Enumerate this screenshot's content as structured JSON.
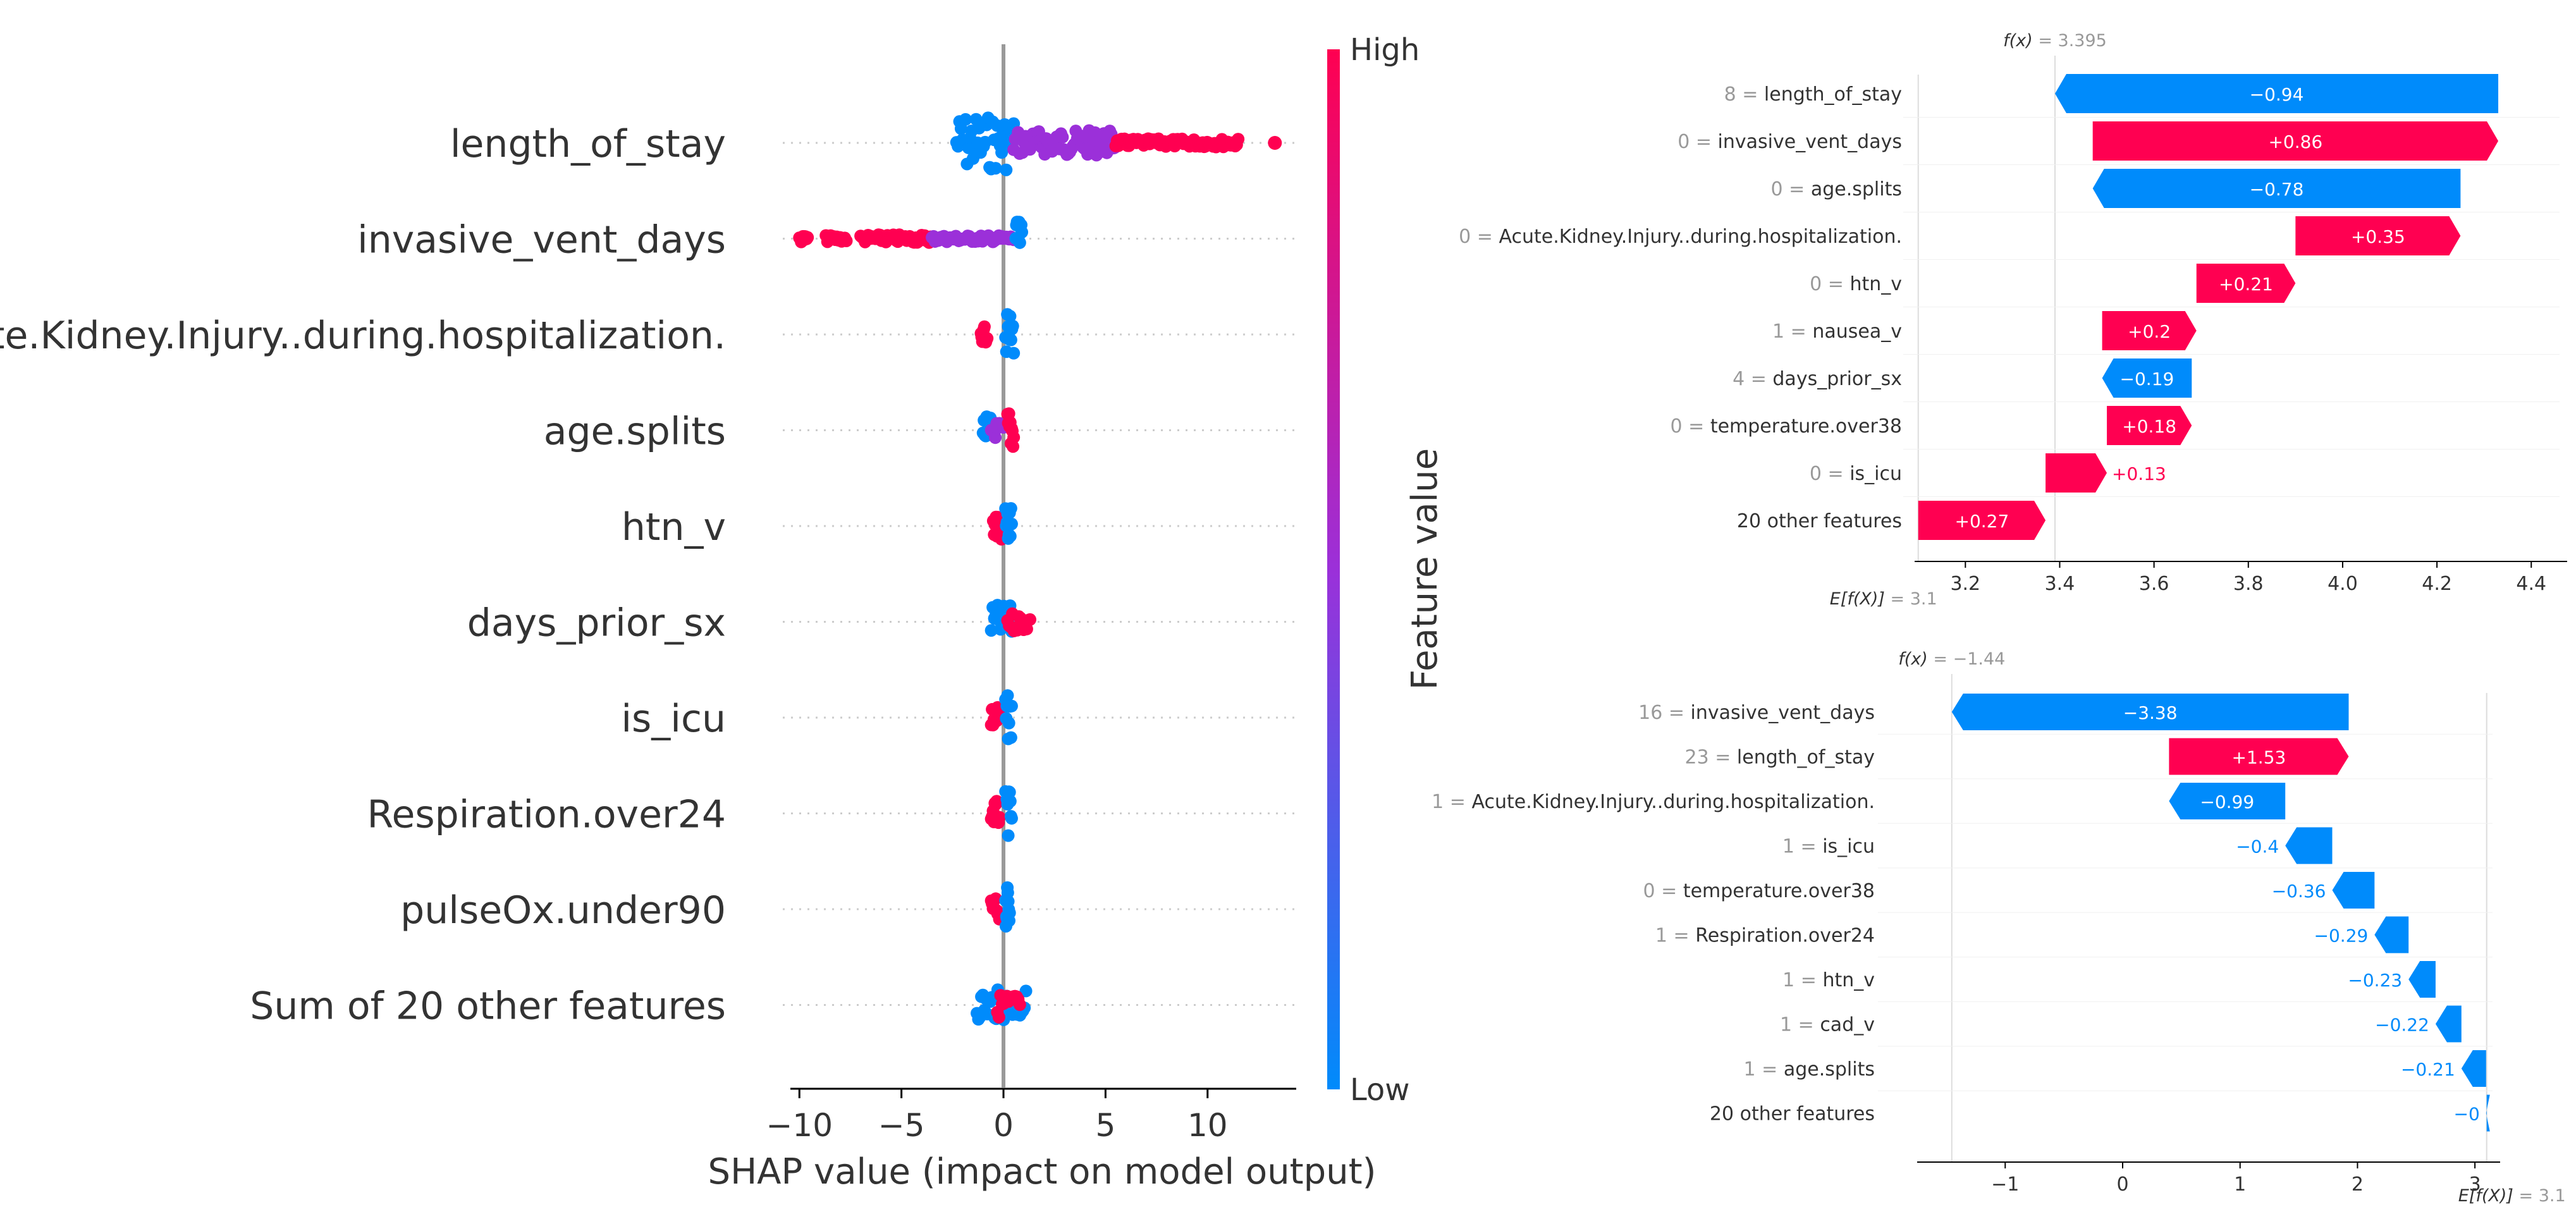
{
  "chart_data": [
    {
      "type": "scatter",
      "subtype": "shap-beeswarm",
      "xlabel": "SHAP value (impact on model output)",
      "xlim": [
        -11,
        14.5
      ],
      "xticks": [
        -10,
        -5,
        0,
        5,
        10
      ],
      "xtick_labels": [
        "−10",
        "−5",
        "0",
        "5",
        "10"
      ],
      "features": [
        "length_of_stay",
        "invasive_vent_days",
        "Acute.Kidney.Injury..during.hospitalization.",
        "age.splits",
        "htn_v",
        "days_prior_sx",
        "is_icu",
        "Respiration.over24",
        "pulseOx.under90",
        "Sum of 20 other features"
      ],
      "point_clusters": [
        {
          "feature": "length_of_stay",
          "segments": [
            {
              "from": -2.3,
              "to": 0.5,
              "color": "low",
              "spread": 1.0
            },
            {
              "from": 0.5,
              "to": 5.5,
              "color": "mid",
              "spread": 0.45
            },
            {
              "from": 5.5,
              "to": 11.5,
              "color": "high",
              "spread": 0.15
            }
          ],
          "points": [
            {
              "x": 13.3,
              "color": "high"
            }
          ]
        },
        {
          "feature": "invasive_vent_days",
          "segments": [
            {
              "from": -10.0,
              "to": -9.6,
              "color": "high",
              "spread": 0.12
            },
            {
              "from": -8.7,
              "to": -7.7,
              "color": "high",
              "spread": 0.12
            },
            {
              "from": -7.0,
              "to": -3.5,
              "color": "high",
              "spread": 0.15
            },
            {
              "from": -3.5,
              "to": 0.5,
              "color": "mid",
              "spread": 0.12
            },
            {
              "from": 0.6,
              "to": 0.9,
              "color": "low",
              "spread": 0.6
            }
          ]
        },
        {
          "feature": "Acute.Kidney.Injury..during.hospitalization.",
          "segments": [
            {
              "from": -1.1,
              "to": -0.8,
              "color": "high",
              "spread": 0.28
            },
            {
              "from": 0.1,
              "to": 0.5,
              "color": "low",
              "spread": 0.75
            }
          ]
        },
        {
          "feature": "age.splits",
          "segments": [
            {
              "from": -1.0,
              "to": -0.6,
              "color": "low",
              "spread": 0.5
            },
            {
              "from": -0.6,
              "to": 0.0,
              "color": "mid",
              "spread": 0.3
            },
            {
              "from": 0.2,
              "to": 0.5,
              "color": "high",
              "spread": 0.75
            }
          ]
        },
        {
          "feature": "htn_v",
          "segments": [
            {
              "from": -0.5,
              "to": -0.1,
              "color": "high",
              "spread": 0.65
            },
            {
              "from": 0.1,
              "to": 0.4,
              "color": "low",
              "spread": 0.8
            }
          ]
        },
        {
          "feature": "days_prior_sx",
          "segments": [
            {
              "from": -0.6,
              "to": 0.4,
              "color": "low",
              "spread": 0.6
            },
            {
              "from": 0.2,
              "to": 1.3,
              "color": "high",
              "spread": 0.35
            }
          ]
        },
        {
          "feature": "is_icu",
          "segments": [
            {
              "from": -0.6,
              "to": -0.2,
              "color": "high",
              "spread": 0.45
            },
            {
              "from": 0.1,
              "to": 0.4,
              "color": "low",
              "spread": 0.8
            }
          ]
        },
        {
          "feature": "Respiration.over24",
          "segments": [
            {
              "from": -0.6,
              "to": -0.2,
              "color": "high",
              "spread": 0.45
            },
            {
              "from": 0.1,
              "to": 0.4,
              "color": "low",
              "spread": 0.8
            }
          ]
        },
        {
          "feature": "pulseOx.under90",
          "segments": [
            {
              "from": -0.6,
              "to": -0.2,
              "color": "high",
              "spread": 0.4
            },
            {
              "from": 0.1,
              "to": 0.3,
              "color": "low",
              "spread": 0.8
            }
          ]
        },
        {
          "feature": "Sum of 20 other features",
          "segments": [
            {
              "from": -1.3,
              "to": 1.1,
              "color": "low",
              "spread": 0.55
            },
            {
              "from": -0.3,
              "to": 0.8,
              "color": "high",
              "spread": 0.45
            }
          ]
        }
      ],
      "colorbar": {
        "label": "Feature value",
        "high_label": "High",
        "low_label": "Low",
        "high_color": "#ff0051",
        "mid_color": "#9b30d9",
        "low_color": "#008bfb"
      }
    },
    {
      "type": "bar",
      "subtype": "shap-waterfall",
      "fx_label": "f(x)",
      "fx_value": "3.395",
      "ex_label": "E[f(X)]",
      "ex_value": "3.1",
      "base": 3.1,
      "xlim": [
        3.095,
        4.46
      ],
      "xticks": [
        3.2,
        3.4,
        3.6,
        3.8,
        4.0,
        4.2,
        4.4
      ],
      "xtick_labels": [
        "3.2",
        "3.4",
        "3.6",
        "3.8",
        "4.0",
        "4.2",
        "4.4"
      ],
      "rows": [
        {
          "value_text": "8",
          "feature": "length_of_stay",
          "contribution": -0.94,
          "label": "−0.94"
        },
        {
          "value_text": "0",
          "feature": "invasive_vent_days",
          "contribution": 0.86,
          "label": "+0.86"
        },
        {
          "value_text": "0",
          "feature": "age.splits",
          "contribution": -0.78,
          "label": "−0.78"
        },
        {
          "value_text": "0",
          "feature": "Acute.Kidney.Injury..during.hospitalization.",
          "contribution": 0.35,
          "label": "+0.35"
        },
        {
          "value_text": "0",
          "feature": "htn_v",
          "contribution": 0.21,
          "label": "+0.21"
        },
        {
          "value_text": "1",
          "feature": "nausea_v",
          "contribution": 0.2,
          "label": "+0.2"
        },
        {
          "value_text": "4",
          "feature": "days_prior_sx",
          "contribution": -0.19,
          "label": "−0.19"
        },
        {
          "value_text": "0",
          "feature": "temperature.over38",
          "contribution": 0.18,
          "label": "+0.18"
        },
        {
          "value_text": "0",
          "feature": "is_icu",
          "contribution": 0.13,
          "label": "+0.13"
        },
        {
          "value_text": "",
          "feature": "20 other features",
          "contribution": 0.27,
          "label": "+0.27"
        }
      ]
    },
    {
      "type": "bar",
      "subtype": "shap-waterfall",
      "fx_label": "f(x)",
      "fx_value": "−1.44",
      "ex_label": "E[f(X)]",
      "ex_value": "3.1",
      "base": 3.1,
      "xlim": [
        -1.75,
        3.15
      ],
      "xticks": [
        -1,
        0,
        1,
        2,
        3
      ],
      "xtick_labels": [
        "−1",
        "0",
        "1",
        "2",
        "3"
      ],
      "rows": [
        {
          "value_text": "16",
          "feature": "invasive_vent_days",
          "contribution": -3.38,
          "label": "−3.38"
        },
        {
          "value_text": "23",
          "feature": "length_of_stay",
          "contribution": 1.53,
          "label": "+1.53"
        },
        {
          "value_text": "1",
          "feature": "Acute.Kidney.Injury..during.hospitalization.",
          "contribution": -0.99,
          "label": "−0.99"
        },
        {
          "value_text": "1",
          "feature": "is_icu",
          "contribution": -0.4,
          "label": "−0.4"
        },
        {
          "value_text": "0",
          "feature": "temperature.over38",
          "contribution": -0.36,
          "label": "−0.36"
        },
        {
          "value_text": "1",
          "feature": "Respiration.over24",
          "contribution": -0.29,
          "label": "−0.29"
        },
        {
          "value_text": "1",
          "feature": "htn_v",
          "contribution": -0.23,
          "label": "−0.23"
        },
        {
          "value_text": "1",
          "feature": "cad_v",
          "contribution": -0.22,
          "label": "−0.22"
        },
        {
          "value_text": "1",
          "feature": "age.splits",
          "contribution": -0.21,
          "label": "−0.21"
        },
        {
          "value_text": "",
          "feature": "20 other features",
          "contribution": -0.005,
          "label": "−0"
        }
      ]
    }
  ],
  "colors": {
    "positive": "#ff0051",
    "negative": "#008bfb",
    "axis": "#000000",
    "muted": "#999999",
    "grid": "#cccccc"
  }
}
